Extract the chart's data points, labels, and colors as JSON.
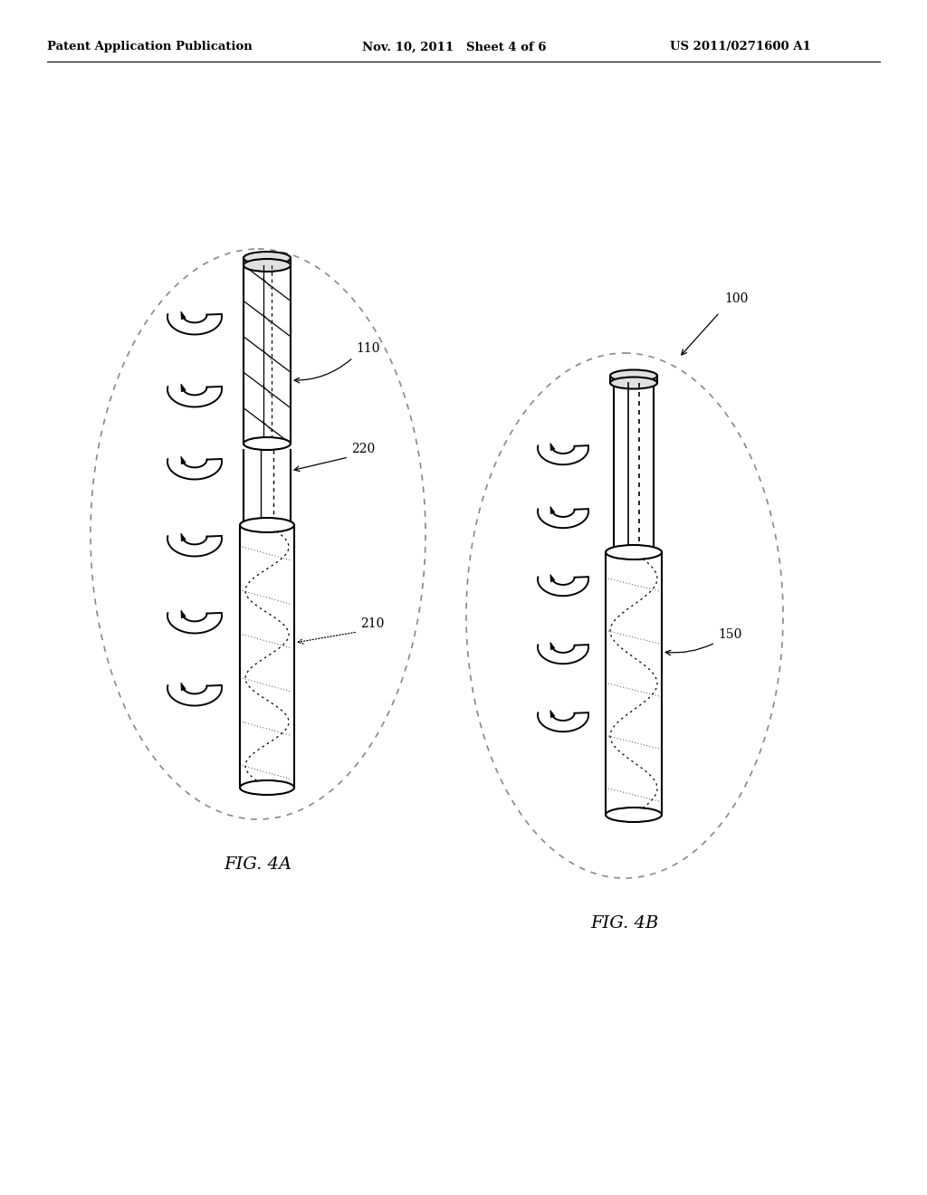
{
  "bg_color": "#ffffff",
  "header_left": "Patent Application Publication",
  "header_mid": "Nov. 10, 2011   Sheet 4 of 6",
  "header_right": "US 2011/0271600 A1",
  "fig4a_label": "FIG. 4A",
  "fig4b_label": "FIG. 4B",
  "label_110": "110",
  "label_220": "220",
  "label_210": "210",
  "label_150": "150",
  "label_100": "100"
}
